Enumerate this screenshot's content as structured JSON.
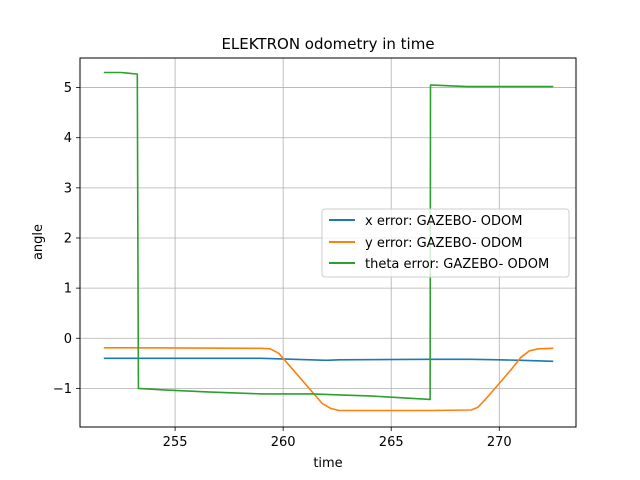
{
  "chart_data": {
    "type": "line",
    "title": "ELEKTRON odometry in time",
    "xlabel": "time",
    "ylabel": "angle",
    "xlim": [
      250.6,
      273.55
    ],
    "ylim": [
      -1.77,
      5.59
    ],
    "xticks": [
      255,
      260,
      265,
      270
    ],
    "yticks": [
      -1,
      0,
      1,
      2,
      3,
      4,
      5
    ],
    "grid": true,
    "legend_position": "center-right",
    "series": [
      {
        "name": "x error: GAZEBO- ODOM",
        "color": "#1f77b4",
        "x": [
          251.7,
          253.3,
          259.0,
          260.5,
          262.0,
          262.6,
          266.8,
          268.7,
          270.0,
          271.0,
          272.5
        ],
        "y": [
          -0.4,
          -0.4,
          -0.4,
          -0.42,
          -0.44,
          -0.43,
          -0.42,
          -0.42,
          -0.43,
          -0.44,
          -0.46
        ]
      },
      {
        "name": "y error: GAZEBO- ODOM",
        "color": "#ff7f0e",
        "x": [
          251.7,
          253.3,
          259.0,
          259.4,
          259.8,
          260.5,
          261.3,
          261.8,
          262.2,
          262.6,
          263.5,
          266.8,
          268.7,
          269.0,
          269.4,
          270.0,
          270.6,
          271.0,
          271.4,
          271.8,
          272.5
        ],
        "y": [
          -0.19,
          -0.19,
          -0.2,
          -0.21,
          -0.3,
          -0.65,
          -1.05,
          -1.3,
          -1.4,
          -1.44,
          -1.44,
          -1.44,
          -1.43,
          -1.38,
          -1.2,
          -0.9,
          -0.6,
          -0.38,
          -0.25,
          -0.21,
          -0.2
        ]
      },
      {
        "name": "theta error: GAZEBO- ODOM",
        "color": "#2ca02c",
        "x": [
          251.7,
          252.5,
          253.2,
          253.25,
          253.3,
          254.5,
          256.5,
          259.0,
          260.5,
          261.3,
          262.0,
          262.6,
          264.0,
          266.0,
          266.8,
          266.82,
          266.9,
          268.5,
          270.0,
          272.5
        ],
        "y": [
          5.3,
          5.3,
          5.27,
          5.27,
          -1.0,
          -1.03,
          -1.07,
          -1.11,
          -1.11,
          -1.11,
          -1.12,
          -1.13,
          -1.15,
          -1.2,
          -1.22,
          5.05,
          5.05,
          5.02,
          5.02,
          5.02
        ]
      }
    ]
  }
}
